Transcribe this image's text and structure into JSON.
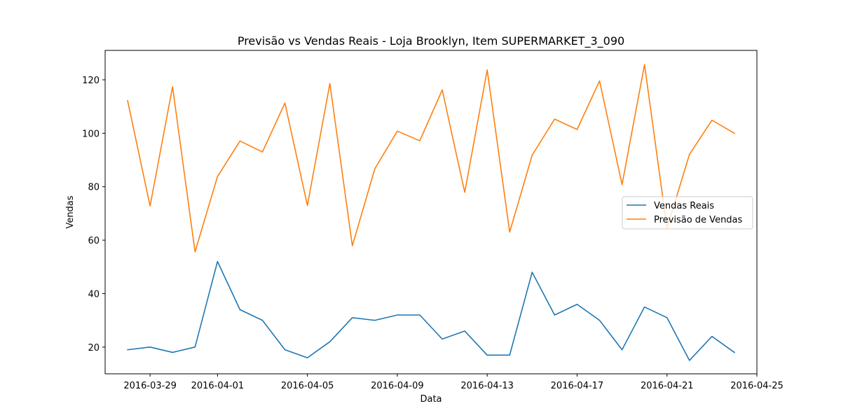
{
  "chart_data": {
    "type": "line",
    "title": "Previsão vs Vendas Reais - Loja Brooklyn, Item SUPERMARKET_3_090",
    "xlabel": "Data",
    "ylabel": "Vendas",
    "x": [
      "2016-03-28",
      "2016-03-29",
      "2016-03-30",
      "2016-03-31",
      "2016-04-01",
      "2016-04-02",
      "2016-04-03",
      "2016-04-04",
      "2016-04-05",
      "2016-04-06",
      "2016-04-07",
      "2016-04-08",
      "2016-04-09",
      "2016-04-10",
      "2016-04-11",
      "2016-04-12",
      "2016-04-13",
      "2016-04-14",
      "2016-04-15",
      "2016-04-16",
      "2016-04-17",
      "2016-04-18",
      "2016-04-19",
      "2016-04-20",
      "2016-04-21",
      "2016-04-22",
      "2016-04-23",
      "2016-04-24"
    ],
    "xlim": [
      "2016-03-27",
      "2016-04-25"
    ],
    "ylim": [
      10,
      131
    ],
    "x_ticks": [
      "2016-03-29",
      "2016-04-01",
      "2016-04-05",
      "2016-04-09",
      "2016-04-13",
      "2016-04-17",
      "2016-04-21",
      "2016-04-25"
    ],
    "y_ticks": [
      20,
      40,
      60,
      80,
      100,
      120
    ],
    "grid": false,
    "legend_position": "right",
    "series": [
      {
        "name": "Vendas Reais",
        "color": "#1f77b4",
        "values": [
          19,
          20,
          18,
          20,
          52,
          34,
          30,
          19,
          16,
          22,
          31,
          30,
          32,
          32,
          23,
          26,
          17,
          17,
          48,
          32,
          36,
          30,
          19,
          35,
          31,
          15,
          24,
          18
        ]
      },
      {
        "name": "Previsão de Vendas",
        "color": "#ff7f0e",
        "values": [
          112.2,
          72.8,
          117.4,
          55.6,
          83.8,
          97.1,
          93.0,
          111.3,
          73.0,
          118.6,
          57.9,
          86.7,
          100.8,
          97.2,
          116.2,
          77.9,
          123.7,
          63.0,
          91.8,
          105.3,
          101.4,
          119.6,
          80.8,
          125.7,
          64.5,
          92.1,
          104.9,
          100.0
        ]
      }
    ]
  }
}
